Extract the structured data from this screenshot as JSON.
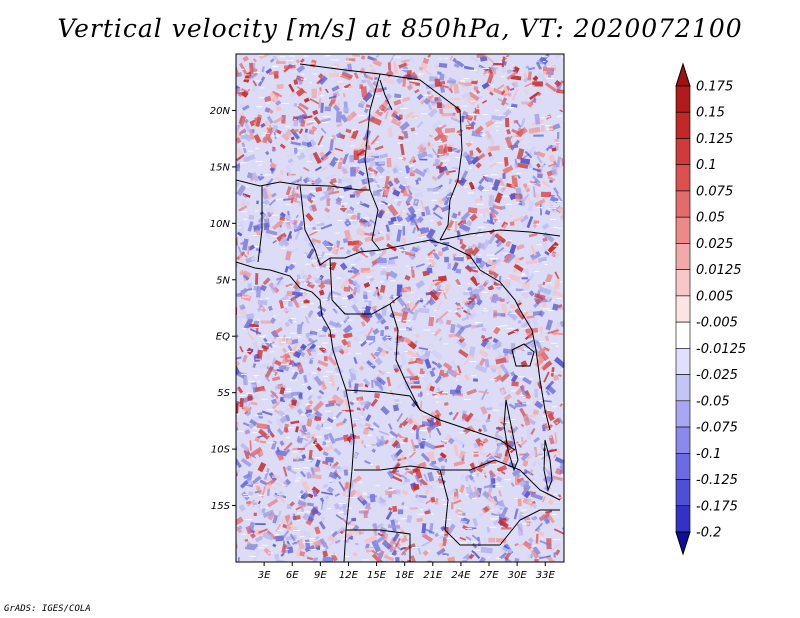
{
  "title": "Vertical velocity [m/s] at 850hPa, VT: 2020072100",
  "credit": "GrADS: IGES/COLA",
  "map": {
    "lon_range": [
      0,
      35
    ],
    "lat_range": [
      -20,
      25
    ],
    "lat_ticks": [
      {
        "value": 20,
        "label": "20N"
      },
      {
        "value": 15,
        "label": "15N"
      },
      {
        "value": 10,
        "label": "10N"
      },
      {
        "value": 5,
        "label": "5N"
      },
      {
        "value": 0,
        "label": "EQ"
      },
      {
        "value": -5,
        "label": "5S"
      },
      {
        "value": -10,
        "label": "10S"
      },
      {
        "value": -15,
        "label": "15S"
      }
    ],
    "lon_ticks": [
      {
        "value": 3,
        "label": "3E"
      },
      {
        "value": 6,
        "label": "6E"
      },
      {
        "value": 9,
        "label": "9E"
      },
      {
        "value": 12,
        "label": "12E"
      },
      {
        "value": 15,
        "label": "15E"
      },
      {
        "value": 18,
        "label": "18E"
      },
      {
        "value": 21,
        "label": "21E"
      },
      {
        "value": 24,
        "label": "24E"
      },
      {
        "value": 27,
        "label": "27E"
      },
      {
        "value": 30,
        "label": "30E"
      },
      {
        "value": 33,
        "label": "33E"
      }
    ]
  },
  "colorbar": {
    "levels": [
      {
        "label": "0.175",
        "color": "#b01b1b"
      },
      {
        "label": "0.15",
        "color": "#c12828"
      },
      {
        "label": "0.125",
        "color": "#d03a3a"
      },
      {
        "label": "0.1",
        "color": "#dc5050"
      },
      {
        "label": "0.075",
        "color": "#e46b6b"
      },
      {
        "label": "0.05",
        "color": "#ec8a8a"
      },
      {
        "label": "0.025",
        "color": "#f3a9a9"
      },
      {
        "label": "0.0125",
        "color": "#f8c8c8"
      },
      {
        "label": "0.005",
        "color": "#fce4e4"
      },
      {
        "label": "-0.005",
        "color": "#ffffff"
      },
      {
        "label": "-0.0125",
        "color": "#e0e0fc"
      },
      {
        "label": "-0.025",
        "color": "#c4c4f8"
      },
      {
        "label": "-0.05",
        "color": "#a7a7f3"
      },
      {
        "label": "-0.075",
        "color": "#8a8aec"
      },
      {
        "label": "-0.1",
        "color": "#6b6be4"
      },
      {
        "label": "-0.125",
        "color": "#4f4fd6"
      },
      {
        "label": "-0.175",
        "color": "#3232c4"
      },
      {
        "label": "-0.2",
        "color": "#1c1cae"
      }
    ],
    "top_color": "#a01212",
    "bottom_color": "#0e0e9a"
  }
}
